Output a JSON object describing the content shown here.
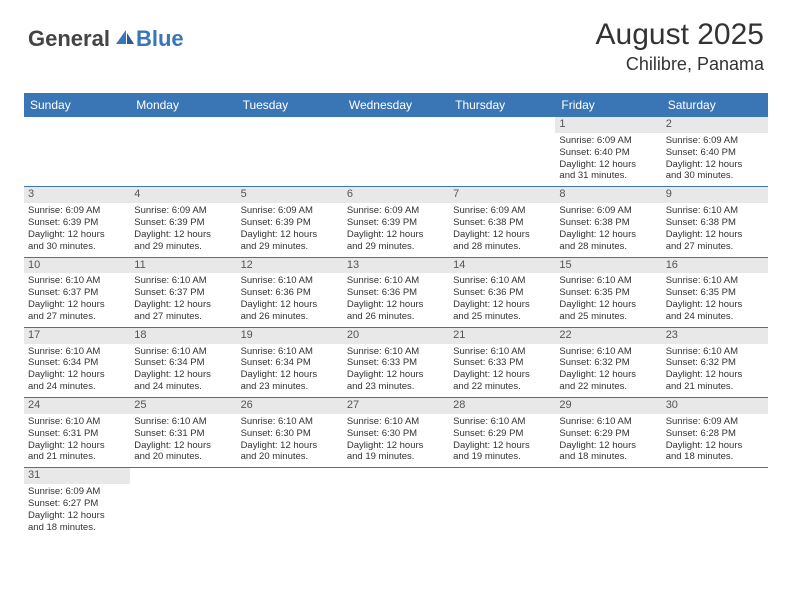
{
  "logo": {
    "part1": "General",
    "part2": "Blue"
  },
  "title": "August 2025",
  "location": "Chilibre, Panama",
  "colors": {
    "header_bg": "#3a76b5",
    "daynum_bg": "#e8e8e8",
    "rule": "#3a76b5"
  },
  "daysOfWeek": [
    "Sunday",
    "Monday",
    "Tuesday",
    "Wednesday",
    "Thursday",
    "Friday",
    "Saturday"
  ],
  "weeks": [
    [
      {
        "empty": true
      },
      {
        "empty": true
      },
      {
        "empty": true
      },
      {
        "empty": true
      },
      {
        "empty": true
      },
      {
        "n": "1",
        "sr": "Sunrise: 6:09 AM",
        "ss": "Sunset: 6:40 PM",
        "d1": "Daylight: 12 hours",
        "d2": "and 31 minutes."
      },
      {
        "n": "2",
        "sr": "Sunrise: 6:09 AM",
        "ss": "Sunset: 6:40 PM",
        "d1": "Daylight: 12 hours",
        "d2": "and 30 minutes."
      }
    ],
    [
      {
        "n": "3",
        "sr": "Sunrise: 6:09 AM",
        "ss": "Sunset: 6:39 PM",
        "d1": "Daylight: 12 hours",
        "d2": "and 30 minutes."
      },
      {
        "n": "4",
        "sr": "Sunrise: 6:09 AM",
        "ss": "Sunset: 6:39 PM",
        "d1": "Daylight: 12 hours",
        "d2": "and 29 minutes."
      },
      {
        "n": "5",
        "sr": "Sunrise: 6:09 AM",
        "ss": "Sunset: 6:39 PM",
        "d1": "Daylight: 12 hours",
        "d2": "and 29 minutes."
      },
      {
        "n": "6",
        "sr": "Sunrise: 6:09 AM",
        "ss": "Sunset: 6:39 PM",
        "d1": "Daylight: 12 hours",
        "d2": "and 29 minutes."
      },
      {
        "n": "7",
        "sr": "Sunrise: 6:09 AM",
        "ss": "Sunset: 6:38 PM",
        "d1": "Daylight: 12 hours",
        "d2": "and 28 minutes."
      },
      {
        "n": "8",
        "sr": "Sunrise: 6:09 AM",
        "ss": "Sunset: 6:38 PM",
        "d1": "Daylight: 12 hours",
        "d2": "and 28 minutes."
      },
      {
        "n": "9",
        "sr": "Sunrise: 6:10 AM",
        "ss": "Sunset: 6:38 PM",
        "d1": "Daylight: 12 hours",
        "d2": "and 27 minutes."
      }
    ],
    [
      {
        "n": "10",
        "sr": "Sunrise: 6:10 AM",
        "ss": "Sunset: 6:37 PM",
        "d1": "Daylight: 12 hours",
        "d2": "and 27 minutes."
      },
      {
        "n": "11",
        "sr": "Sunrise: 6:10 AM",
        "ss": "Sunset: 6:37 PM",
        "d1": "Daylight: 12 hours",
        "d2": "and 27 minutes."
      },
      {
        "n": "12",
        "sr": "Sunrise: 6:10 AM",
        "ss": "Sunset: 6:36 PM",
        "d1": "Daylight: 12 hours",
        "d2": "and 26 minutes."
      },
      {
        "n": "13",
        "sr": "Sunrise: 6:10 AM",
        "ss": "Sunset: 6:36 PM",
        "d1": "Daylight: 12 hours",
        "d2": "and 26 minutes."
      },
      {
        "n": "14",
        "sr": "Sunrise: 6:10 AM",
        "ss": "Sunset: 6:36 PM",
        "d1": "Daylight: 12 hours",
        "d2": "and 25 minutes."
      },
      {
        "n": "15",
        "sr": "Sunrise: 6:10 AM",
        "ss": "Sunset: 6:35 PM",
        "d1": "Daylight: 12 hours",
        "d2": "and 25 minutes."
      },
      {
        "n": "16",
        "sr": "Sunrise: 6:10 AM",
        "ss": "Sunset: 6:35 PM",
        "d1": "Daylight: 12 hours",
        "d2": "and 24 minutes."
      }
    ],
    [
      {
        "n": "17",
        "sr": "Sunrise: 6:10 AM",
        "ss": "Sunset: 6:34 PM",
        "d1": "Daylight: 12 hours",
        "d2": "and 24 minutes."
      },
      {
        "n": "18",
        "sr": "Sunrise: 6:10 AM",
        "ss": "Sunset: 6:34 PM",
        "d1": "Daylight: 12 hours",
        "d2": "and 24 minutes."
      },
      {
        "n": "19",
        "sr": "Sunrise: 6:10 AM",
        "ss": "Sunset: 6:34 PM",
        "d1": "Daylight: 12 hours",
        "d2": "and 23 minutes."
      },
      {
        "n": "20",
        "sr": "Sunrise: 6:10 AM",
        "ss": "Sunset: 6:33 PM",
        "d1": "Daylight: 12 hours",
        "d2": "and 23 minutes."
      },
      {
        "n": "21",
        "sr": "Sunrise: 6:10 AM",
        "ss": "Sunset: 6:33 PM",
        "d1": "Daylight: 12 hours",
        "d2": "and 22 minutes."
      },
      {
        "n": "22",
        "sr": "Sunrise: 6:10 AM",
        "ss": "Sunset: 6:32 PM",
        "d1": "Daylight: 12 hours",
        "d2": "and 22 minutes."
      },
      {
        "n": "23",
        "sr": "Sunrise: 6:10 AM",
        "ss": "Sunset: 6:32 PM",
        "d1": "Daylight: 12 hours",
        "d2": "and 21 minutes."
      }
    ],
    [
      {
        "n": "24",
        "sr": "Sunrise: 6:10 AM",
        "ss": "Sunset: 6:31 PM",
        "d1": "Daylight: 12 hours",
        "d2": "and 21 minutes."
      },
      {
        "n": "25",
        "sr": "Sunrise: 6:10 AM",
        "ss": "Sunset: 6:31 PM",
        "d1": "Daylight: 12 hours",
        "d2": "and 20 minutes."
      },
      {
        "n": "26",
        "sr": "Sunrise: 6:10 AM",
        "ss": "Sunset: 6:30 PM",
        "d1": "Daylight: 12 hours",
        "d2": "and 20 minutes."
      },
      {
        "n": "27",
        "sr": "Sunrise: 6:10 AM",
        "ss": "Sunset: 6:30 PM",
        "d1": "Daylight: 12 hours",
        "d2": "and 19 minutes."
      },
      {
        "n": "28",
        "sr": "Sunrise: 6:10 AM",
        "ss": "Sunset: 6:29 PM",
        "d1": "Daylight: 12 hours",
        "d2": "and 19 minutes."
      },
      {
        "n": "29",
        "sr": "Sunrise: 6:10 AM",
        "ss": "Sunset: 6:29 PM",
        "d1": "Daylight: 12 hours",
        "d2": "and 18 minutes."
      },
      {
        "n": "30",
        "sr": "Sunrise: 6:09 AM",
        "ss": "Sunset: 6:28 PM",
        "d1": "Daylight: 12 hours",
        "d2": "and 18 minutes."
      }
    ],
    [
      {
        "n": "31",
        "sr": "Sunrise: 6:09 AM",
        "ss": "Sunset: 6:27 PM",
        "d1": "Daylight: 12 hours",
        "d2": "and 18 minutes."
      },
      {
        "empty": true
      },
      {
        "empty": true
      },
      {
        "empty": true
      },
      {
        "empty": true
      },
      {
        "empty": true
      },
      {
        "empty": true
      }
    ]
  ]
}
